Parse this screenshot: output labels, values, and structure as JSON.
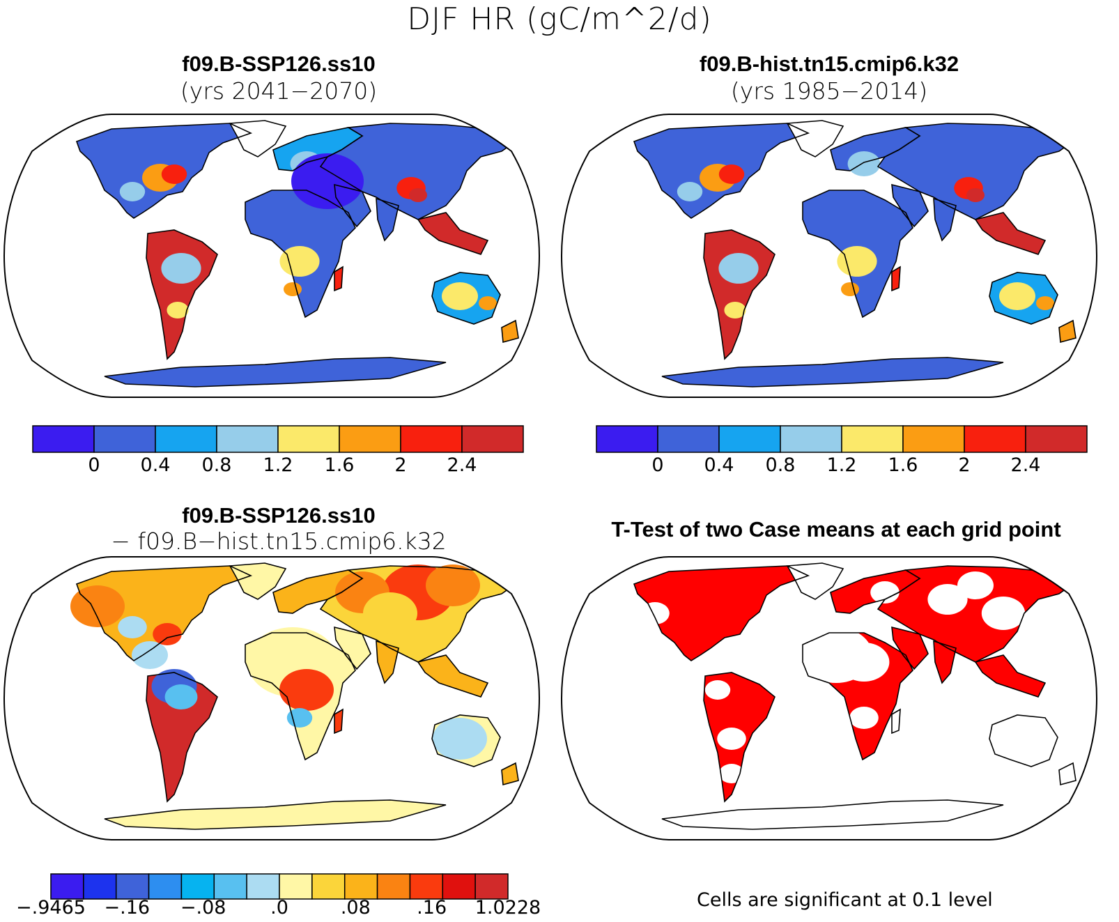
{
  "figure_title": "DJF HR (gC/m^2/d)",
  "panels": [
    {
      "id": "top-left",
      "title": "f09.B-SSP126.ss10",
      "subtitle": "(yrs 2041−2070)"
    },
    {
      "id": "top-right",
      "title": "f09.B-hist.tn15.cmip6.k32",
      "subtitle": "(yrs 1985−2014)"
    },
    {
      "id": "bottom-left",
      "title": "f09.B-SSP126.ss10",
      "subtitle": "− f09.B−hist.tn15.cmip6.k32"
    },
    {
      "id": "bottom-right",
      "title": "T-Test of two Case means at each grid point",
      "subtitle": ""
    }
  ],
  "colorbars": {
    "absolute": {
      "colors": [
        "#3b1cf0",
        "#3f63d9",
        "#16a4f0",
        "#96cdea",
        "#fbe96a",
        "#fb9d13",
        "#f8200e",
        "#d12a2a"
      ],
      "labels": [
        "0",
        "0.4",
        "0.8",
        "1.2",
        "1.6",
        "2",
        "2.4"
      ]
    },
    "difference": {
      "colors": [
        "#3b1cf0",
        "#1d33ee",
        "#3f63d9",
        "#2d8ef0",
        "#06b3f0",
        "#58c0f0",
        "#acdcf2",
        "#fff7a6",
        "#fbd53a",
        "#fbb31a",
        "#fa8312",
        "#fa3b0e",
        "#e0110e",
        "#d12a2a"
      ],
      "labels": [
        "−.9465",
        "−.16",
        "−.08",
        ".0",
        ".08",
        ".16",
        "1.0228"
      ]
    }
  },
  "significance_color": "#ff0000",
  "significance_note": "Cells are significant at 0.1 level"
}
